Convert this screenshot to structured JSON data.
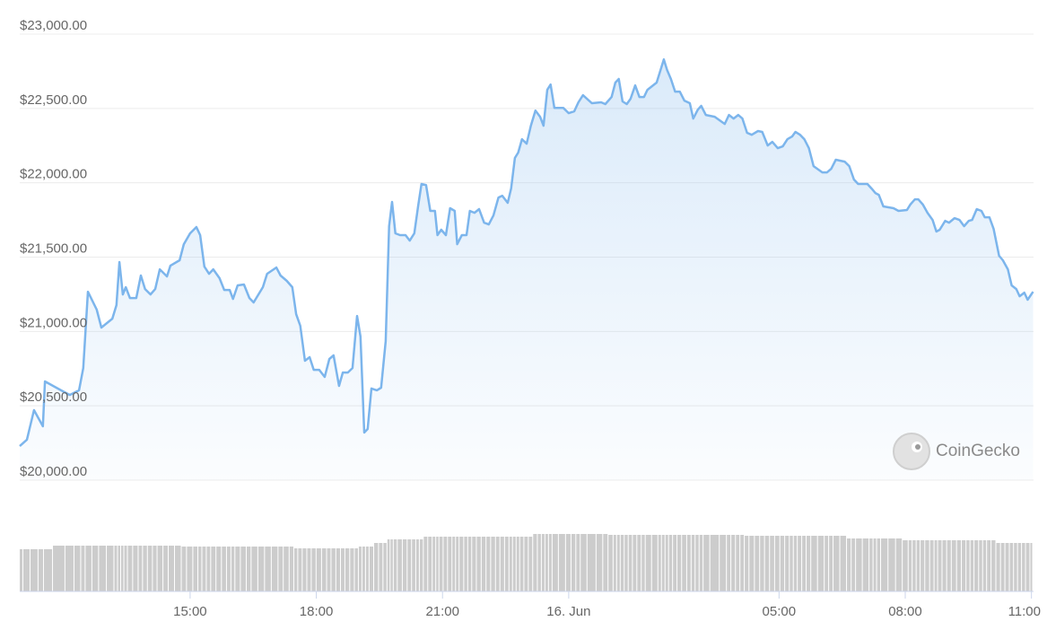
{
  "chart_data": {
    "type": "line",
    "color": "#7cb5ec",
    "grid": true,
    "x": [
      10.95,
      11.12,
      11.29,
      11.5,
      11.55,
      11.93,
      12.14,
      12.36,
      12.46,
      12.57,
      12.78,
      12.89,
      13.15,
      13.25,
      13.32,
      13.4,
      13.47,
      13.57,
      13.72,
      13.83,
      13.93,
      14.06,
      14.17,
      14.28,
      14.45,
      14.53,
      14.75,
      14.85,
      15,
      15.15,
      15.24,
      15.34,
      15.45,
      15.55,
      15.7,
      15.81,
      15.94,
      16.02,
      16.13,
      16.28,
      16.41,
      16.51,
      16.73,
      16.83,
      17.05,
      17.15,
      17.3,
      17.43,
      17.52,
      17.62,
      17.73,
      17.84,
      17.94,
      18.07,
      18.2,
      18.31,
      18.41,
      18.54,
      18.63,
      18.75,
      18.86,
      18.97,
      19.05,
      19.14,
      19.22,
      19.31,
      19.44,
      19.54,
      19.65,
      19.73,
      19.8,
      19.88,
      19.99,
      20.12,
      20.22,
      20.33,
      20.42,
      20.5,
      20.61,
      20.71,
      20.82,
      20.88,
      20.97,
      21.08,
      21.18,
      21.29,
      21.35,
      21.46,
      21.57,
      21.65,
      21.76,
      21.87,
      21.99,
      22.1,
      22.21,
      22.33,
      22.42,
      22.55,
      22.63,
      22.72,
      22.8,
      22.89,
      23,
      23.1,
      23.21,
      23.32,
      23.4,
      23.49,
      23.57,
      23.66,
      23.87,
      24,
      24.13,
      24.23,
      24.34,
      24.55,
      24.77,
      24.87,
      25.02,
      25.11,
      25.19,
      25.28,
      25.38,
      25.47,
      25.58,
      25.68,
      25.79,
      25.87,
      26.09,
      26.17,
      26.26,
      26.34,
      26.43,
      26.53,
      26.64,
      26.75,
      26.88,
      26.96,
      27.07,
      27.15,
      27.26,
      27.47,
      27.71,
      27.81,
      27.92,
      28.03,
      28.13,
      28.24,
      28.35,
      28.5,
      28.6,
      28.73,
      28.84,
      28.97,
      29.09,
      29.2,
      29.31,
      29.39,
      29.5,
      29.6,
      29.71,
      29.82,
      30.03,
      30.14,
      30.24,
      30.35,
      30.56,
      30.67,
      30.78,
      30.88,
      31.1,
      31.2,
      31.29,
      31.37,
      31.48,
      31.72,
      31.84,
      32.04,
      32.12,
      32.23,
      32.31,
      32.42,
      32.53,
      32.65,
      32.74,
      32.82,
      32.95,
      33.04,
      33.17,
      33.29,
      33.4,
      33.51,
      33.59,
      33.7,
      33.81,
      33.89,
      34,
      34.1,
      34.23,
      34.32,
      34.44,
      34.53,
      34.64,
      34.72,
      34.83,
      34.91,
      35.04
    ],
    "values": [
      20229,
      20272,
      20471,
      20362,
      20664,
      20604,
      20573,
      20604,
      20754,
      21267,
      21147,
      21026,
      21086,
      21177,
      21467,
      21249,
      21298,
      21225,
      21225,
      21376,
      21285,
      21249,
      21285,
      21418,
      21370,
      21442,
      21479,
      21587,
      21660,
      21702,
      21648,
      21436,
      21388,
      21418,
      21358,
      21279,
      21279,
      21219,
      21310,
      21316,
      21225,
      21195,
      21298,
      21388,
      21430,
      21376,
      21340,
      21298,
      21116,
      21038,
      20803,
      20827,
      20742,
      20742,
      20694,
      20815,
      20839,
      20634,
      20724,
      20724,
      20754,
      21104,
      20966,
      20320,
      20344,
      20616,
      20604,
      20622,
      20935,
      21708,
      21871,
      21660,
      21648,
      21648,
      21611,
      21660,
      21841,
      21992,
      21985,
      21811,
      21811,
      21648,
      21684,
      21648,
      21829,
      21811,
      21587,
      21648,
      21648,
      21811,
      21798,
      21823,
      21732,
      21720,
      21780,
      21901,
      21913,
      21865,
      21961,
      22167,
      22203,
      22293,
      22263,
      22384,
      22486,
      22444,
      22384,
      22625,
      22661,
      22504,
      22504,
      22468,
      22480,
      22541,
      22589,
      22535,
      22541,
      22529,
      22577,
      22674,
      22698,
      22547,
      22529,
      22565,
      22655,
      22577,
      22577,
      22625,
      22674,
      22746,
      22830,
      22758,
      22698,
      22613,
      22613,
      22553,
      22535,
      22432,
      22492,
      22517,
      22456,
      22444,
      22396,
      22456,
      22432,
      22456,
      22432,
      22336,
      22323,
      22348,
      22342,
      22251,
      22275,
      22233,
      22245,
      22293,
      22311,
      22342,
      22323,
      22293,
      22233,
      22112,
      22070,
      22070,
      22094,
      22155,
      22142,
      22112,
      22022,
      21992,
      21992,
      21961,
      21931,
      21919,
      21841,
      21829,
      21811,
      21817,
      21853,
      21889,
      21889,
      21853,
      21798,
      21750,
      21672,
      21684,
      21744,
      21732,
      21762,
      21750,
      21708,
      21744,
      21750,
      21823,
      21811,
      21768,
      21768,
      21690,
      21509,
      21479,
      21418,
      21310,
      21285,
      21237,
      21261,
      21213,
      21267
    ],
    "xlim": [
      10.95,
      35.05
    ],
    "ylim": [
      20000,
      23000
    ],
    "yticks": [
      {
        "value": 20000,
        "label": "$20,000.00"
      },
      {
        "value": 20500,
        "label": "$20,500.00"
      },
      {
        "value": 21000,
        "label": "$21,000.00"
      },
      {
        "value": 21500,
        "label": "$21,500.00"
      },
      {
        "value": 22000,
        "label": "$22,000.00"
      },
      {
        "value": 22500,
        "label": "$22,500.00"
      },
      {
        "value": 23000,
        "label": "$23,000.00"
      }
    ],
    "xticks": [
      {
        "value": 15,
        "label": "15:00"
      },
      {
        "value": 18,
        "label": "18:00"
      },
      {
        "value": 21,
        "label": "21:00"
      },
      {
        "value": 24,
        "label": "16. Jun"
      },
      {
        "value": 29,
        "label": "05:00"
      },
      {
        "value": 32,
        "label": "08:00"
      },
      {
        "value": 35,
        "label": "11:00"
      }
    ],
    "volume": {
      "color": "#cccccc",
      "ylim": [
        0,
        70
      ],
      "values": [
        47,
        47,
        47,
        47,
        47,
        51,
        51,
        51,
        51,
        51,
        51,
        51,
        51,
        51,
        51,
        51,
        51,
        51,
        51,
        51,
        51,
        51,
        51,
        51,
        51,
        51,
        51,
        50,
        50,
        50,
        50,
        50,
        50,
        50,
        50,
        50,
        50,
        50,
        50,
        50,
        50,
        50,
        50,
        50,
        50,
        50,
        50,
        50,
        48,
        48,
        48,
        48,
        48,
        48,
        48,
        48,
        48,
        48,
        48,
        48,
        48,
        48,
        50,
        50,
        50,
        50,
        54,
        54,
        54,
        58,
        58,
        58,
        58,
        58,
        58,
        58,
        58,
        58,
        61,
        61,
        61,
        61,
        61,
        61,
        61,
        61,
        61,
        61,
        61,
        61,
        61,
        61,
        61,
        61,
        61,
        61,
        61,
        61,
        61,
        61,
        61,
        61,
        61,
        61,
        64,
        64,
        64,
        64,
        64,
        64,
        64,
        64,
        64,
        64,
        64,
        64,
        64,
        64,
        63,
        63,
        63,
        63,
        63,
        63,
        63,
        63,
        63,
        63,
        63,
        63,
        63,
        63,
        63,
        63,
        63,
        63,
        63,
        63,
        63,
        63,
        63,
        63,
        63,
        63,
        63,
        63,
        63,
        62,
        62,
        62,
        62,
        62,
        62,
        62,
        62,
        62,
        62,
        62,
        62,
        62,
        62,
        62,
        62,
        62,
        62,
        62,
        62,
        59,
        59,
        59,
        59,
        59,
        59,
        59,
        59,
        59,
        59,
        57,
        57,
        57,
        57,
        57,
        57,
        57,
        57,
        57,
        57,
        57,
        57,
        57,
        57,
        57,
        57,
        57,
        57,
        57,
        57,
        57,
        54,
        54,
        54,
        54,
        54,
        54,
        54,
        54,
        54
      ]
    },
    "watermark": "CoinGecko"
  }
}
